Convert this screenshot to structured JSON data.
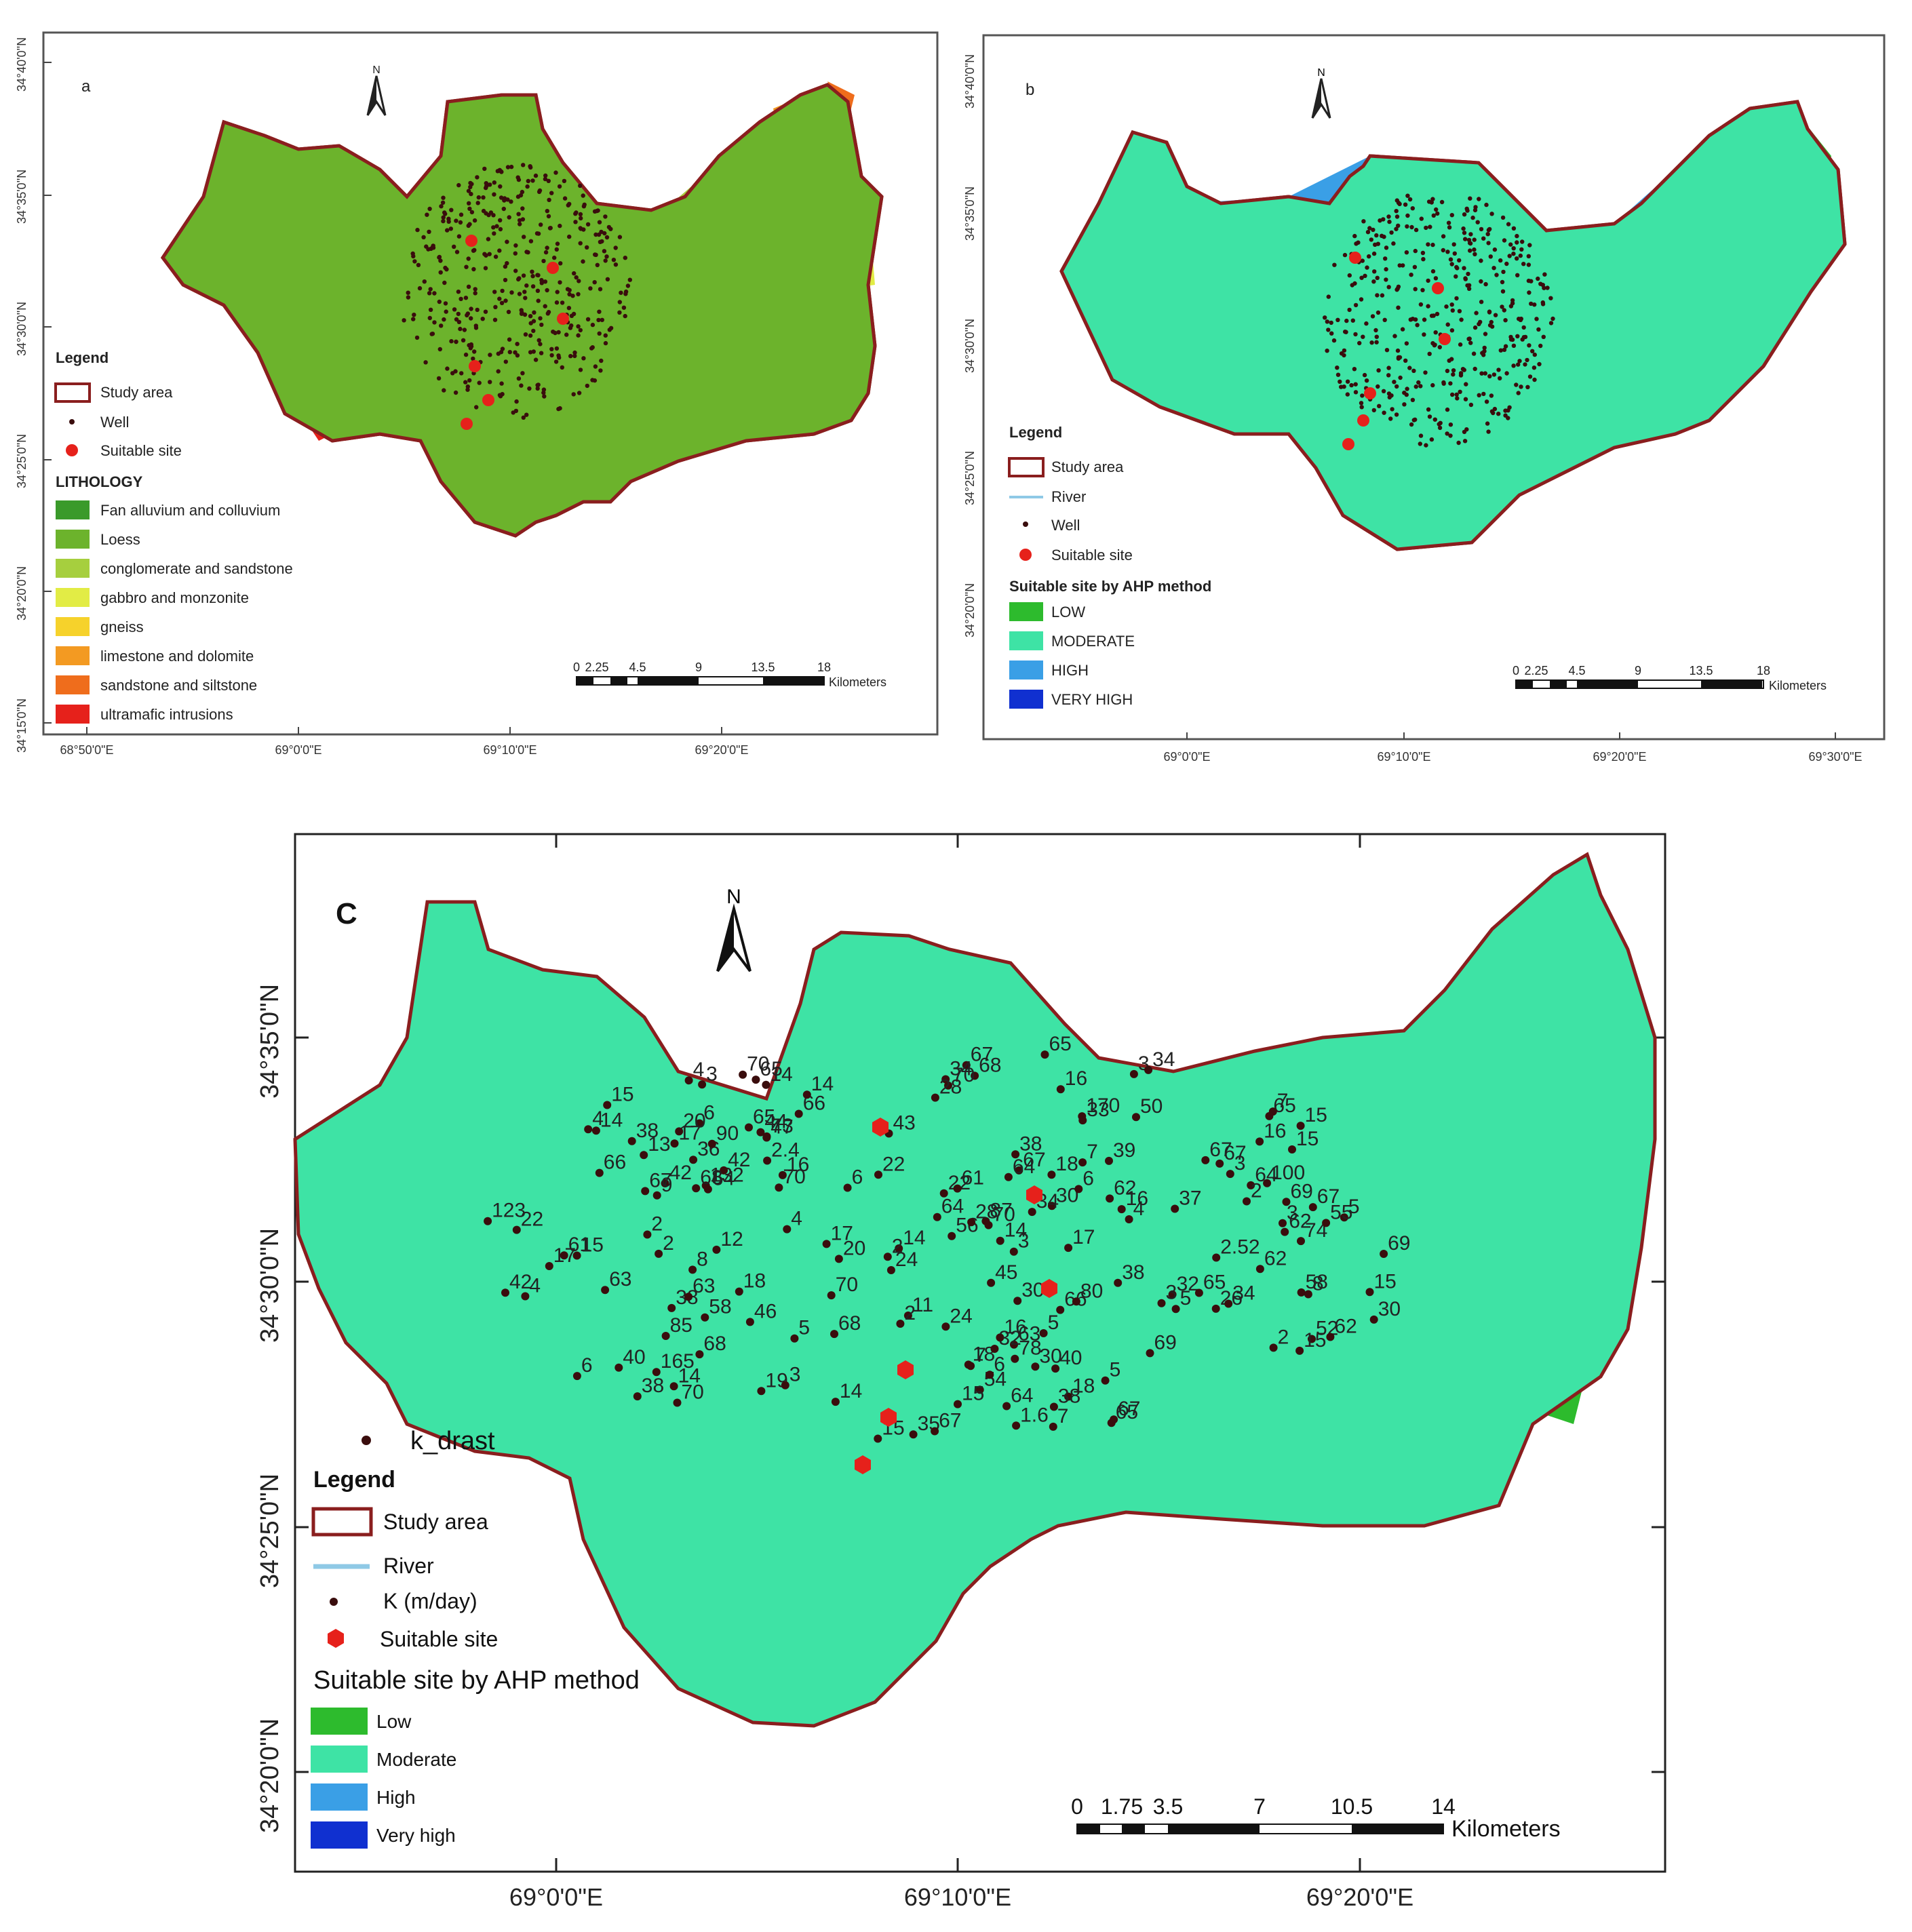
{
  "panel_a": {
    "letter": "a",
    "north": "N",
    "lat_labels": [
      "34°40'0\"N",
      "34°35'0\"N",
      "34°30'0\"N",
      "34°25'0\"N",
      "34°20'0\"N",
      "34°15'0\"N"
    ],
    "lon_labels": [
      "68°50'0\"E",
      "69°0'0\"E",
      "69°10'0\"E",
      "69°20'0\"E"
    ],
    "legend_title": "Legend",
    "legend_items": [
      "Study area",
      "Well",
      "Suitable site"
    ],
    "lithology_title": "LITHOLOGY",
    "lithology": [
      {
        "label": "Fan alluvium and colluvium",
        "color": "#3a9a2a"
      },
      {
        "label": "Loess",
        "color": "#6cb32c"
      },
      {
        "label": "conglomerate and sandstone",
        "color": "#a6cf3e"
      },
      {
        "label": "gabbro and monzonite",
        "color": "#e2ec45"
      },
      {
        "label": "gneiss",
        "color": "#f6d22b"
      },
      {
        "label": "limestone and dolomite",
        "color": "#f39a22"
      },
      {
        "label": "sandstone and siltstone",
        "color": "#ef6d1c"
      },
      {
        "label": "ultramafic intrusions",
        "color": "#e6211b"
      }
    ],
    "scale_ticks": [
      "0",
      "2.25",
      "4.5",
      "9",
      "13.5",
      "18"
    ],
    "scale_unit": "Kilometers"
  },
  "panel_b": {
    "letter": "b",
    "north": "N",
    "lat_labels": [
      "34°40'0\"N",
      "34°35'0\"N",
      "34°30'0\"N",
      "34°25'0\"N",
      "34°20'0\"N"
    ],
    "lon_labels": [
      "69°0'0\"E",
      "69°10'0\"E",
      "69°20'0\"E",
      "69°30'0\"E"
    ],
    "legend_title": "Legend",
    "legend_items": [
      "Study area",
      "River",
      "Well",
      "Suitable site"
    ],
    "ahp_title": "Suitable site by AHP method",
    "ahp_classes": [
      {
        "label": "LOW",
        "color": "#2dbb2d"
      },
      {
        "label": "MODERATE",
        "color": "#3ee3a5"
      },
      {
        "label": "HIGH",
        "color": "#3a9fe6"
      },
      {
        "label": "VERY HIGH",
        "color": "#1030d0"
      }
    ],
    "scale_ticks": [
      "0",
      "2.25",
      "4.5",
      "9",
      "13.5",
      "18"
    ],
    "scale_unit": "Kilometers"
  },
  "panel_c": {
    "letter": "C",
    "north": "N",
    "lat_labels": [
      "34°35'0\"N",
      "34°30'0\"N",
      "34°25'0\"N",
      "34°20'0\"N"
    ],
    "lon_labels": [
      "69°0'0\"E",
      "69°10'0\"E",
      "69°20'0\"E"
    ],
    "point_layer": "k_drast",
    "legend_title": "Legend",
    "legend_items": [
      "Study area",
      "River",
      "K (m/day)",
      "Suitable site"
    ],
    "ahp_title": "Suitable site by AHP method",
    "ahp_classes": [
      {
        "label": "Low",
        "color": "#2dbb2d"
      },
      {
        "label": "Moderate",
        "color": "#3ee3a5"
      },
      {
        "label": "High",
        "color": "#3a9fe6"
      },
      {
        "label": "Very high",
        "color": "#1030d0"
      }
    ],
    "scale_ticks": [
      "0",
      "1.75",
      "3.5",
      "7",
      "10.5",
      "14"
    ],
    "scale_unit": "Kilometers",
    "k_labels": [
      "17",
      "18",
      "22",
      "20",
      "30",
      "30",
      "22",
      "47",
      "38",
      "34",
      "37",
      "35",
      "18",
      "7",
      "16",
      "64",
      "69",
      "67",
      "36",
      "43",
      "44",
      "58",
      "63",
      "42",
      "63",
      "67",
      "68",
      "66",
      "52",
      "65",
      "58",
      "69",
      "64",
      "67",
      "46",
      "123",
      "132",
      "38",
      "5",
      "4",
      "3",
      "2",
      "3",
      "33",
      "62",
      "54",
      "65",
      "68",
      "61",
      "70",
      "65",
      "67",
      "68",
      "70",
      "67",
      "70",
      "18",
      "70",
      "69",
      "45",
      "170",
      "15",
      "56",
      "26",
      "14",
      "12",
      "6",
      "14",
      "15",
      "16",
      "14",
      "15",
      "17",
      "85",
      "64",
      "40",
      "62",
      "67",
      "16",
      "15",
      "14",
      "32",
      "7",
      "6",
      "165",
      "34",
      "87",
      "78",
      "18",
      "11",
      "28",
      "62",
      "38",
      "38",
      "34",
      "38",
      "42",
      "63",
      "61",
      "17",
      "14",
      "13",
      "6",
      "4",
      "7",
      "6",
      "6",
      "4",
      "3",
      "74",
      "8",
      "24",
      "80",
      "22",
      "40",
      "50",
      "39",
      "67",
      "65",
      "65",
      "19",
      "14",
      "3",
      "5",
      "4",
      "3",
      "3",
      "15",
      "30",
      "38",
      "55",
      "64",
      "66",
      "20",
      "17",
      "2",
      "5",
      "4",
      "3",
      "2",
      "2.52",
      "2",
      "9",
      "7",
      "90",
      "70",
      "15",
      "24",
      "16",
      "66",
      "68",
      "70",
      "28",
      "15",
      "14",
      "2.4",
      "5",
      "1.6",
      "2",
      "8",
      "32",
      "15",
      "30",
      "16",
      "65",
      "62",
      "67",
      "64",
      "73",
      "42",
      "34",
      "100",
      "5",
      "2"
    ]
  }
}
